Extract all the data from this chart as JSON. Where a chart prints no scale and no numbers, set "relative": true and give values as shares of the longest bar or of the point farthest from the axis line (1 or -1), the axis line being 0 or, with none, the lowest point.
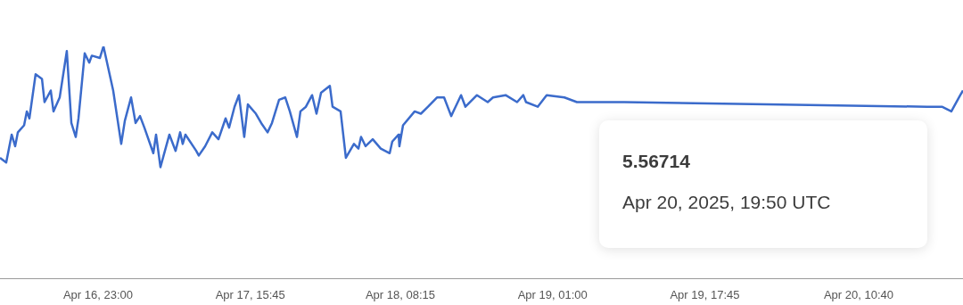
{
  "chart_data": {
    "type": "line",
    "relative": true,
    "line_style": "solid",
    "legend": false,
    "grid": false,
    "tick_labels": "x",
    "xlim": [
      "2025-04-16T12:13",
      "2025-04-20T22:09"
    ],
    "xticks": [
      {
        "value": "2025-04-16T23:00",
        "label": "Apr 16, 23:00"
      },
      {
        "value": "2025-04-17T15:45",
        "label": "Apr 17, 15:45"
      },
      {
        "value": "2025-04-18T08:15",
        "label": "Apr 18, 08:15"
      },
      {
        "value": "2025-04-19T01:00",
        "label": "Apr 19, 01:00"
      },
      {
        "value": "2025-04-19T17:45",
        "label": "Apr 19, 17:45"
      },
      {
        "value": "2025-04-20T10:40",
        "label": "Apr 20, 10:40"
      }
    ],
    "annotations": [
      "5.56714",
      "Apr 20, 2025, 19:50 UTC"
    ],
    "series": [
      {
        "color": "#3b6bcb",
        "x": [
          "2025-04-16T12:13",
          "2025-04-16T12:54",
          "2025-04-16T13:30",
          "2025-04-16T13:53",
          "2025-04-16T14:11",
          "2025-04-16T14:52",
          "2025-04-16T15:10",
          "2025-04-16T15:27",
          "2025-04-16T16:08",
          "2025-04-16T16:50",
          "2025-04-16T17:07",
          "2025-04-16T17:48",
          "2025-04-16T18:06",
          "2025-04-16T18:47",
          "2025-04-16T19:34",
          "2025-04-16T20:04",
          "2025-04-16T20:33",
          "2025-04-16T20:51",
          "2025-04-16T21:32",
          "2025-04-16T22:02",
          "2025-04-16T22:19",
          "2025-04-16T23:12",
          "2025-04-16T23:36",
          "2025-04-17T00:40",
          "2025-04-17T01:33",
          "2025-04-17T01:57",
          "2025-04-17T02:38",
          "2025-04-17T03:08",
          "2025-04-17T03:37",
          "2025-04-17T04:06",
          "2025-04-17T05:05",
          "2025-04-17T05:23",
          "2025-04-17T05:52",
          "2025-04-17T06:51",
          "2025-04-17T07:32",
          "2025-04-17T08:02",
          "2025-04-17T08:19",
          "2025-04-17T08:37",
          "2025-04-17T09:48",
          "2025-04-17T10:05",
          "2025-04-17T10:47",
          "2025-04-17T11:34",
          "2025-04-17T12:15",
          "2025-04-17T13:02",
          "2025-04-17T13:25",
          "2025-04-17T14:01",
          "2025-04-17T14:30",
          "2025-04-17T15:05",
          "2025-04-17T15:29",
          "2025-04-17T16:22",
          "2025-04-17T16:57",
          "2025-04-17T17:39",
          "2025-04-17T18:08",
          "2025-04-17T18:55",
          "2025-04-17T19:36",
          "2025-04-17T20:06",
          "2025-04-17T20:53",
          "2025-04-17T21:16",
          "2025-04-17T21:52",
          "2025-04-17T22:33",
          "2025-04-17T23:02",
          "2025-04-17T23:32",
          "2025-04-18T00:30",
          "2025-04-18T00:48",
          "2025-04-18T01:41",
          "2025-04-18T02:16",
          "2025-04-18T03:09",
          "2025-04-18T03:39",
          "2025-04-18T03:56",
          "2025-04-18T04:26",
          "2025-04-18T05:13",
          "2025-04-18T06:06",
          "2025-04-18T07:05",
          "2025-04-18T07:22",
          "2025-04-18T08:04",
          "2025-04-18T08:09",
          "2025-04-18T08:33",
          "2025-04-18T09:50",
          "2025-04-18T10:31",
          "2025-04-18T11:18",
          "2025-04-18T12:17",
          "2025-04-18T13:04",
          "2025-04-18T13:51",
          "2025-04-18T14:56",
          "2025-04-18T15:25",
          "2025-04-18T16:41",
          "2025-04-18T17:52",
          "2025-04-18T18:27",
          "2025-04-18T19:50",
          "2025-04-18T21:06",
          "2025-04-18T21:47",
          "2025-04-18T22:05",
          "2025-04-18T23:22",
          "2025-04-19T00:21",
          "2025-04-19T02:18",
          "2025-04-19T03:41",
          "2025-04-19T08:53",
          "2025-04-20T00:34",
          "2025-04-20T18:13",
          "2025-04-20T19:50",
          "2025-04-20T20:52",
          "2025-04-20T21:51",
          "2025-04-20T22:09"
        ],
        "values": [
          0.52,
          0.5,
          0.62,
          0.57,
          0.63,
          0.66,
          0.72,
          0.69,
          0.88,
          0.86,
          0.76,
          0.81,
          0.72,
          0.78,
          0.98,
          0.67,
          0.61,
          0.69,
          0.97,
          0.93,
          0.96,
          0.95,
          1.0,
          0.81,
          0.58,
          0.68,
          0.78,
          0.67,
          0.7,
          0.65,
          0.54,
          0.62,
          0.48,
          0.62,
          0.55,
          0.63,
          0.58,
          0.62,
          0.55,
          0.53,
          0.57,
          0.63,
          0.6,
          0.69,
          0.65,
          0.74,
          0.79,
          0.61,
          0.75,
          0.71,
          0.67,
          0.63,
          0.67,
          0.77,
          0.78,
          0.72,
          0.61,
          0.72,
          0.74,
          0.79,
          0.71,
          0.8,
          0.83,
          0.74,
          0.72,
          0.52,
          0.58,
          0.56,
          0.61,
          0.57,
          0.6,
          0.56,
          0.54,
          0.59,
          0.62,
          0.57,
          0.66,
          0.72,
          0.71,
          0.74,
          0.78,
          0.78,
          0.7,
          0.79,
          0.74,
          0.79,
          0.76,
          0.78,
          0.79,
          0.76,
          0.79,
          0.76,
          0.74,
          0.79,
          0.78,
          0.76,
          0.76,
          0.75,
          0.74,
          0.74,
          0.72,
          0.79,
          0.81
        ]
      }
    ]
  }
}
